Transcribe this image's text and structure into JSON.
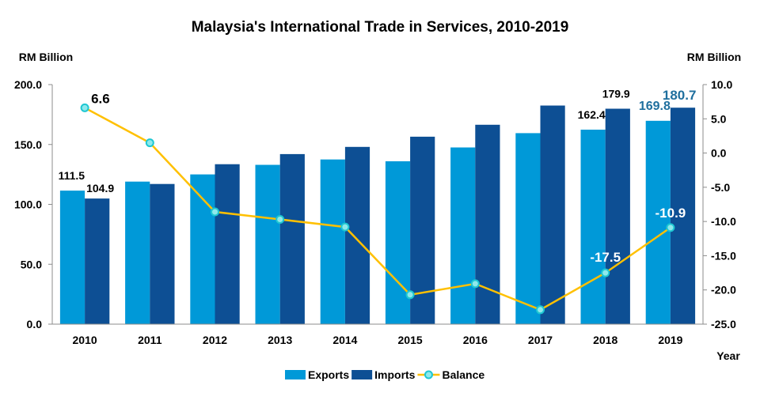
{
  "chart_data": {
    "type": "bar",
    "title": "Malaysia's International Trade in Services, 2010-2019",
    "ylabel_left": "RM Billion",
    "ylabel_right": "RM Billion",
    "xlabel": "Year",
    "categories": [
      "2010",
      "2011",
      "2012",
      "2013",
      "2014",
      "2015",
      "2016",
      "2017",
      "2018",
      "2019"
    ],
    "ylim_left": [
      0,
      200
    ],
    "yticks_left": [
      "0.0",
      "50.0",
      "100.0",
      "150.0",
      "200.0"
    ],
    "ylim_right": [
      -25,
      10
    ],
    "yticks_right": [
      "-25.0",
      "-20.0",
      "-15.0",
      "-10.0",
      "-5.0",
      "0.0",
      "5.0",
      "10.0"
    ],
    "grid": false,
    "legend_position": "bottom",
    "series": [
      {
        "name": "Exports",
        "type": "bar",
        "axis": "left",
        "color": "#0099d8",
        "values": [
          111.5,
          119,
          125,
          133,
          137.5,
          136,
          147.5,
          159.5,
          162.4,
          169.8
        ],
        "labels": {
          "0": "111.5",
          "8": "162.4",
          "9": "169.8"
        }
      },
      {
        "name": "Imports",
        "type": "bar",
        "axis": "left",
        "color": "#0d4f94",
        "values": [
          104.9,
          117,
          133.5,
          142,
          148,
          156.5,
          166.5,
          182.5,
          179.9,
          180.7
        ],
        "labels": {
          "0": "104.9",
          "8": "179.9",
          "9": "180.7"
        }
      },
      {
        "name": "Balance",
        "type": "line",
        "axis": "right",
        "color": "#ffc000",
        "marker_fill": "#8ee9ec",
        "marker_stroke": "#1ec7d2",
        "values": [
          6.6,
          1.5,
          -8.6,
          -9.7,
          -10.8,
          -20.7,
          -19.1,
          -22.9,
          -17.5,
          -10.9
        ],
        "labels": {
          "0": "6.6",
          "8": "-17.5",
          "9": "-10.9"
        }
      }
    ]
  }
}
